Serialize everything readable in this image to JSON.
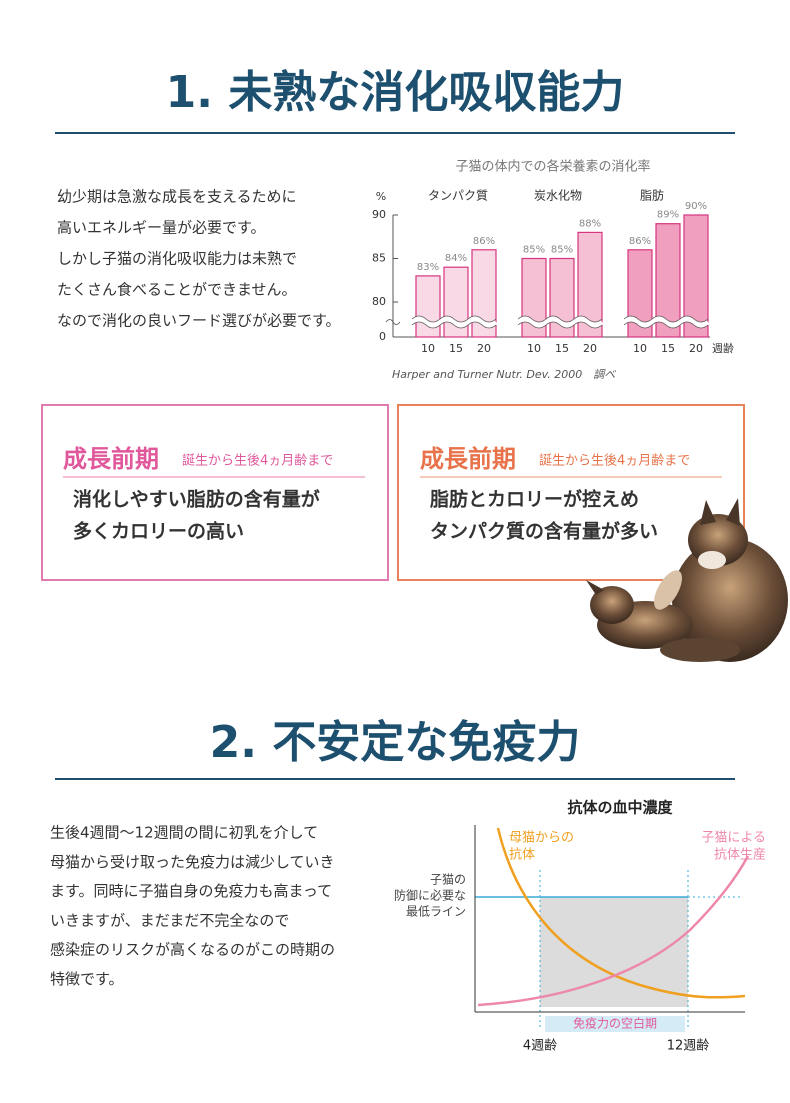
{
  "section1": {
    "title": "1. 未熟な消化吸収能力",
    "body": [
      "幼少期は急激な成長を支えるために",
      "高いエネルギー量が必要です。",
      "しかし子猫の消化吸収能力は未熟で",
      "たくさん食べることができません。",
      "なので消化の良いフード選びが必要です。"
    ],
    "chart": {
      "type": "bar",
      "title": "子猫の体内での各栄養素の消化率",
      "y_unit": "%",
      "x_unit": "週齢",
      "categories": [
        "10",
        "15",
        "20"
      ],
      "series": [
        {
          "name": "タンパク質",
          "color": "#f9d9e5",
          "values": [
            83,
            84,
            86
          ],
          "value_labels": [
            "83%",
            "84%",
            "86%"
          ]
        },
        {
          "name": "炭水化物",
          "color": "#f5c0d3",
          "values": [
            85,
            85,
            88
          ],
          "value_labels": [
            "85%",
            "85%",
            "88%"
          ]
        },
        {
          "name": "脂肪",
          "color": "#f09fbe",
          "values": [
            86,
            89,
            90
          ],
          "value_labels": [
            "86%",
            "89%",
            "90%"
          ]
        }
      ],
      "ylim": [
        0,
        90
      ],
      "yticks": [
        0,
        80,
        85,
        90
      ],
      "source": "Harper and Turner Nutr. Dev. 2000　調べ"
    }
  },
  "stages": [
    {
      "title": "成長前期",
      "period": "誕生から生後4ヵ月齢まで",
      "body": [
        "消化しやすい脂肪の含有量が",
        "多くカロリーの高い"
      ]
    },
    {
      "title": "成長前期",
      "period": "誕生から生後4ヵ月齢まで",
      "body": [
        "脂肪とカロリーが控えめ",
        "タンパク質の含有量が多い"
      ]
    }
  ],
  "section2": {
    "title": "2. 不安定な免疫力",
    "body": [
      "生後4週間〜12週間の間に初乳を介して",
      "母猫から受け取った免疫力は減少していき",
      "ます。同時に子猫自身の免疫力も高まって",
      "いきますが、まだまだ不完全なので",
      "感染症のリスクが高くなるのがこの時期の",
      "特徴です。"
    ],
    "diagram": {
      "title": "抗体の血中濃度",
      "maternal": [
        "母猫からの",
        "抗体"
      ],
      "kitten": [
        "子猫による",
        "抗体生産"
      ],
      "threshold": [
        "子猫の",
        "防御に必要な",
        "最低ライン"
      ],
      "gap": "免疫力の空白期",
      "start": "4週齢",
      "end": "12週齢"
    }
  }
}
